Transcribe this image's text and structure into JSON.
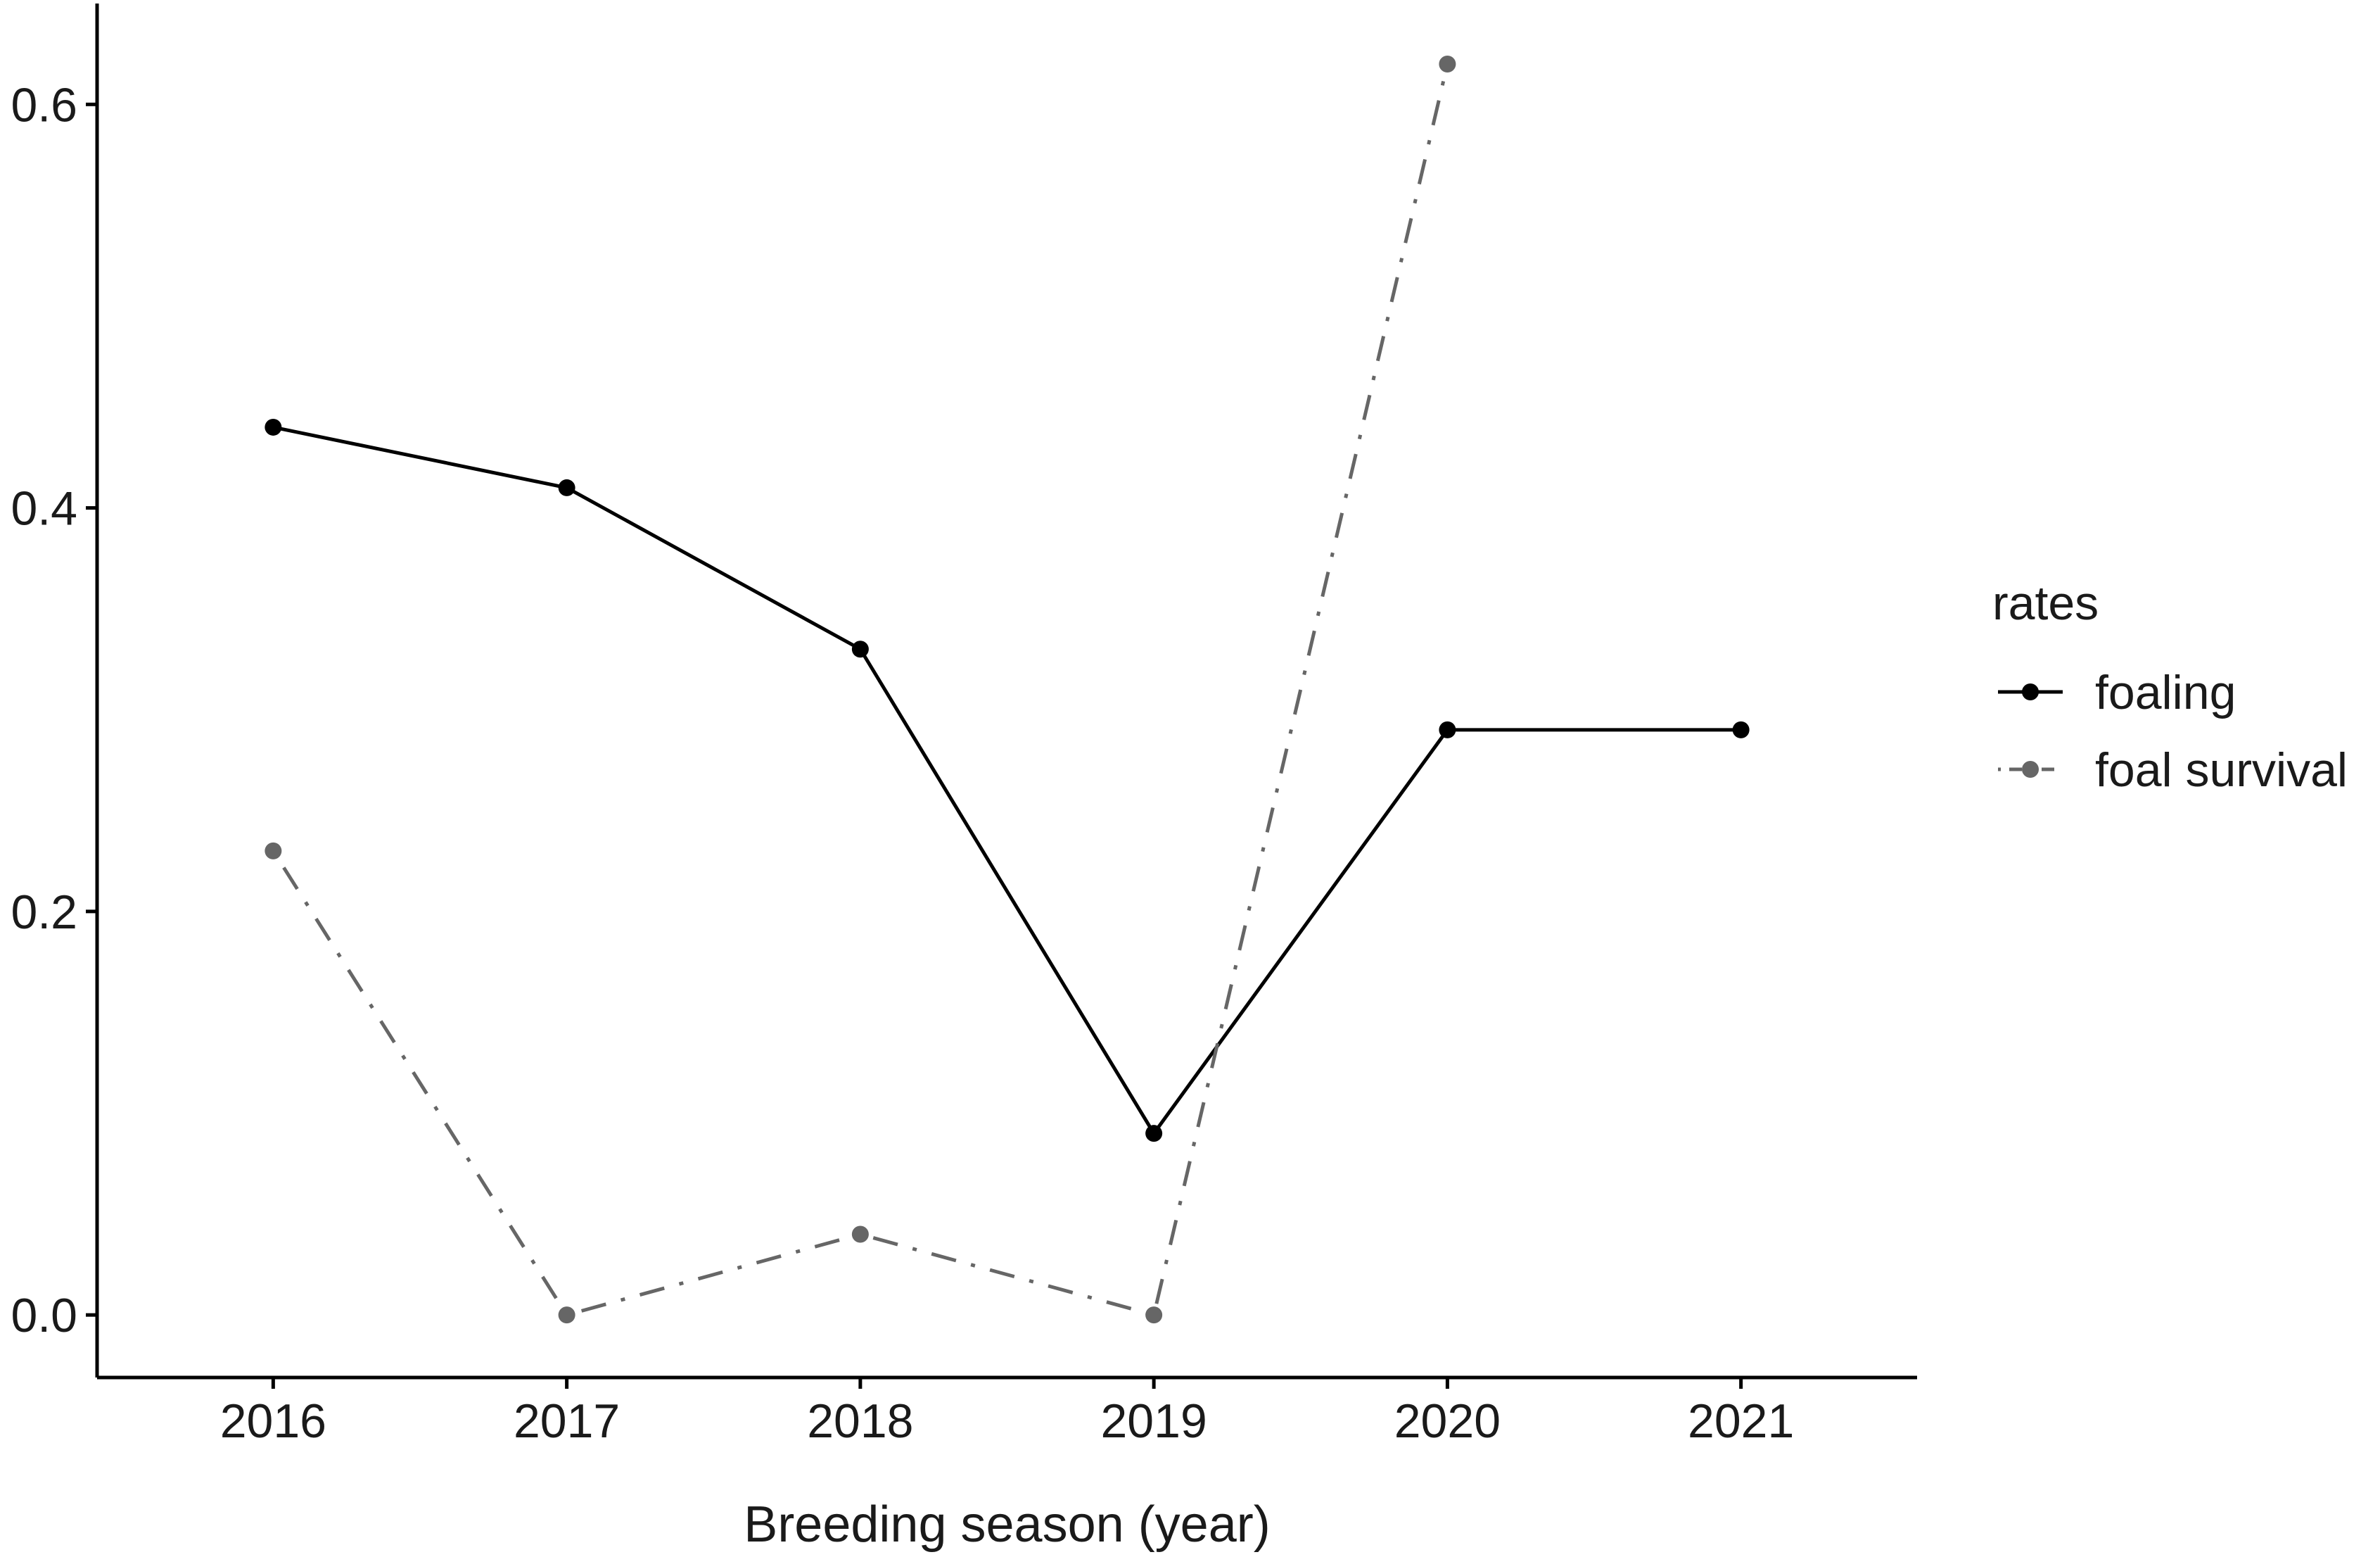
{
  "chart_data": {
    "type": "line",
    "title": "",
    "xlabel": "Breeding season (year)",
    "ylabel": "",
    "x": [
      2016,
      2017,
      2018,
      2019,
      2020,
      2021
    ],
    "xlim": [
      2015.4,
      2021.6
    ],
    "ylim": [
      -0.031,
      0.65
    ],
    "yticks": [
      0.0,
      0.2,
      0.4,
      0.6
    ],
    "ytick_labels": [
      "0.0",
      "0.2",
      "0.4",
      "0.6"
    ],
    "xtick_labels": [
      "2016",
      "2017",
      "2018",
      "2019",
      "2020",
      "2021"
    ],
    "grid": false,
    "legend_position": "right",
    "legend_title": "rates",
    "series": [
      {
        "name": "foaling",
        "color": "#000000",
        "line_style": "solid",
        "x": [
          2016,
          2017,
          2018,
          2019,
          2020,
          2021
        ],
        "values": [
          0.44,
          0.41,
          0.33,
          0.09,
          0.29,
          0.29
        ]
      },
      {
        "name": "foal survival",
        "color": "#666666",
        "line_style": "dotdash",
        "x": [
          2016,
          2017,
          2018,
          2019,
          2020
        ],
        "values": [
          0.23,
          0.0,
          0.04,
          0.0,
          0.62
        ]
      }
    ]
  }
}
